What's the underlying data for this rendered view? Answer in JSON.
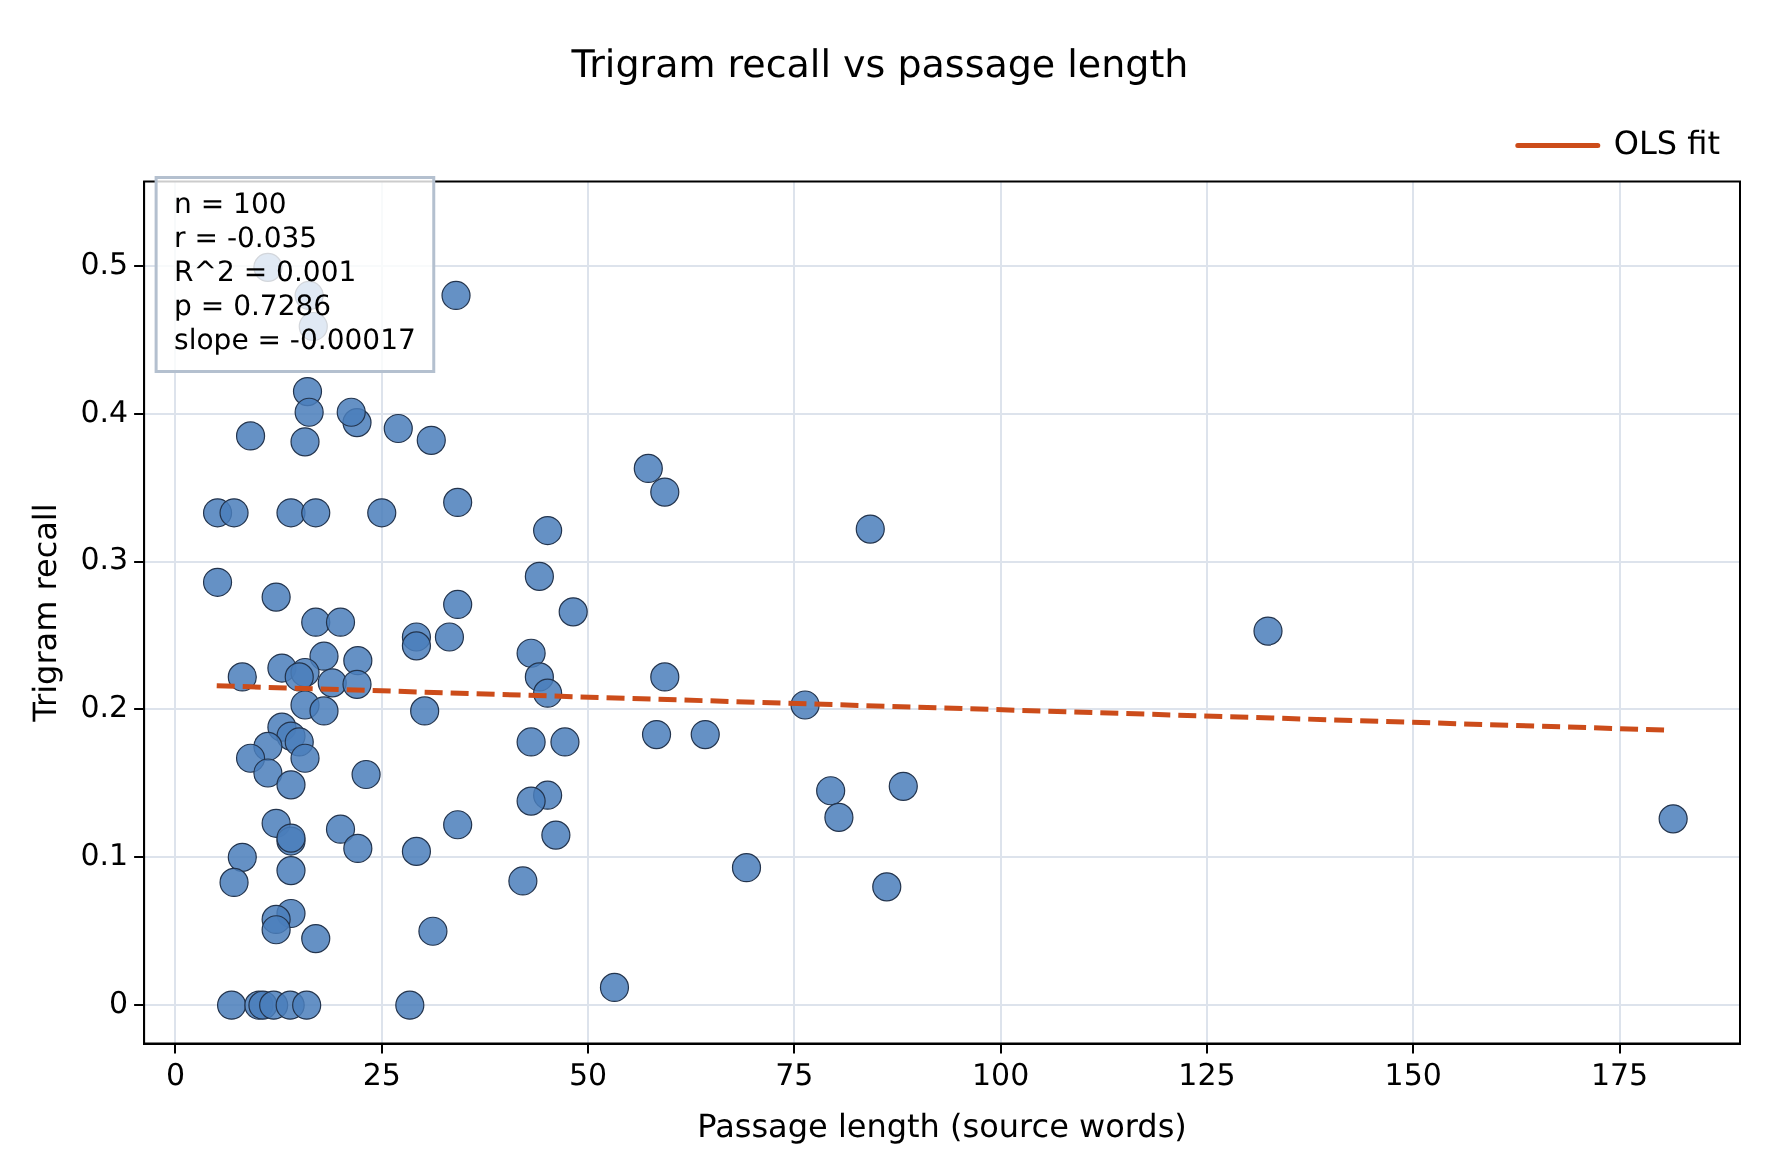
{
  "chart_data": {
    "type": "scatter",
    "title": "Trigram recall vs passage length",
    "xlabel": "Passage length (source words)",
    "ylabel": "Trigram recall",
    "xlim": [
      -3.8,
      189.6
    ],
    "ylim": [
      -0.026,
      0.557
    ],
    "xticks": [
      0,
      25,
      50,
      75,
      100,
      125,
      150,
      175
    ],
    "yticks": [
      0,
      0.1,
      0.2,
      0.3,
      0.4,
      0.5
    ],
    "grid": true,
    "legend": "top right",
    "marker": "circle",
    "annotations": [
      "n = 100",
      "r = -0.035",
      "R^2 = 0.001",
      "p = 0.7286",
      "slope = -0.00017"
    ],
    "series": [
      {
        "color": "#4a7ebb",
        "x": [
          5.1,
          5.1,
          7.1,
          9.1,
          11.2,
          8.1,
          12.2,
          15.7,
          16,
          34,
          22,
          27,
          31,
          14,
          17,
          25,
          34.2,
          45.1,
          57.3,
          59.3,
          84.2,
          132.4,
          17,
          20,
          44.1,
          48.2,
          34.2,
          29.2,
          33.2,
          29.2,
          22.1,
          18,
          12.9,
          15.7,
          15,
          19,
          22,
          43.1,
          44.1,
          45.1,
          59.3,
          76.3,
          15.7,
          18,
          30.2,
          12.9,
          14,
          11.2,
          15,
          43.1,
          47.2,
          58.3,
          64.2,
          9.1,
          15.7,
          11.2,
          23.1,
          14,
          45.1,
          43.1,
          79.4,
          88.2,
          12.2,
          20,
          34.2,
          80.4,
          14,
          14,
          46.1,
          8.1,
          22.1,
          29.2,
          14,
          7.1,
          42.1,
          69.2,
          86.2,
          14,
          12.2,
          12.2,
          17,
          31.2,
          53.2,
          181.5,
          6.8,
          10.1,
          10.6,
          11.9,
          13.9,
          15.9,
          28.4,
          16.2,
          16.7,
          16.2,
          21.3
        ],
        "values": [
          0.286,
          0.333,
          0.333,
          0.385,
          0.499,
          0.222,
          0.276,
          0.381,
          0.415,
          0.48,
          0.394,
          0.39,
          0.382,
          0.333,
          0.333,
          0.333,
          0.34,
          0.321,
          0.363,
          0.347,
          0.322,
          0.253,
          0.259,
          0.259,
          0.29,
          0.266,
          0.271,
          0.249,
          0.249,
          0.243,
          0.233,
          0.236,
          0.228,
          0.225,
          0.222,
          0.218,
          0.217,
          0.238,
          0.222,
          0.211,
          0.222,
          0.203,
          0.203,
          0.199,
          0.199,
          0.188,
          0.182,
          0.175,
          0.178,
          0.178,
          0.178,
          0.183,
          0.183,
          0.167,
          0.167,
          0.157,
          0.156,
          0.149,
          0.142,
          0.138,
          0.145,
          0.148,
          0.123,
          0.119,
          0.122,
          0.127,
          0.111,
          0.113,
          0.115,
          0.1,
          0.106,
          0.104,
          0.091,
          0.083,
          0.084,
          0.093,
          0.08,
          0.062,
          0.058,
          0.051,
          0.045,
          0.05,
          0.012,
          0.126,
          0,
          0,
          0,
          0,
          0,
          0,
          0,
          0.48,
          0.459,
          0.401,
          0.401
        ]
      },
      {
        "type": "line",
        "name": "OLS fit",
        "color": "#cc4c1a",
        "line_style": "dashed",
        "marker": "none",
        "x": [
          5,
          181
        ],
        "values": [
          0.216,
          0.186
        ]
      }
    ]
  }
}
